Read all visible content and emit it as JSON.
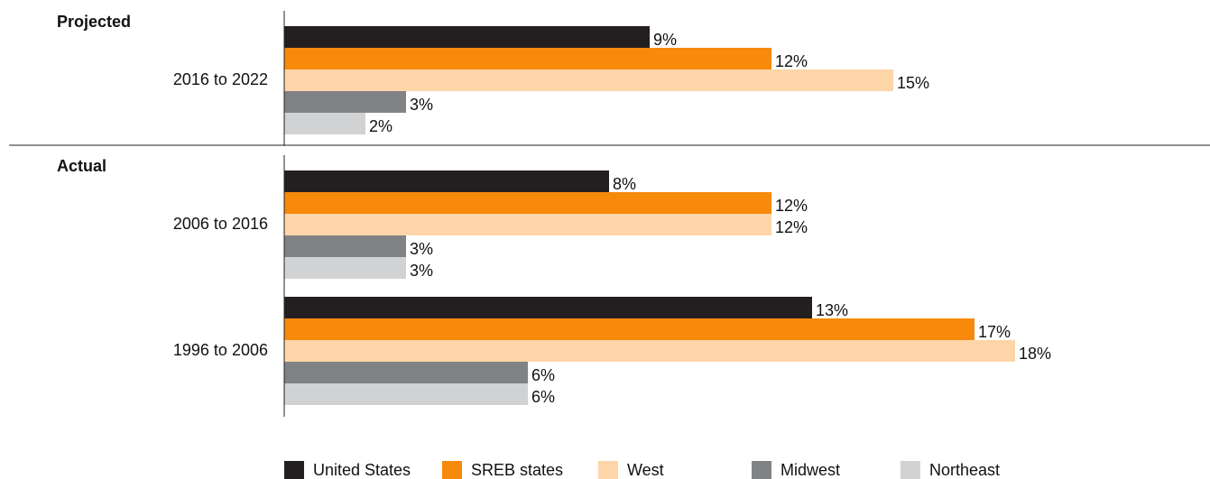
{
  "chart_data": {
    "type": "bar",
    "orientation": "horizontal",
    "groups": [
      {
        "name": "Projected",
        "categories": [
          "2016 to 2022"
        ]
      },
      {
        "name": "Actual",
        "categories": [
          "2006 to 2016",
          "1996 to 2006"
        ]
      }
    ],
    "series": [
      {
        "name": "United States",
        "color": "#231f20",
        "values": [
          9,
          8,
          13
        ],
        "value_labels": [
          "9%",
          "8%",
          "13%"
        ]
      },
      {
        "name": "SREB states",
        "color": "#f7890b",
        "values": [
          12,
          12,
          17
        ],
        "value_labels": [
          "12%",
          "12%",
          "17%"
        ]
      },
      {
        "name": "West",
        "color": "#fdd5a8",
        "values": [
          15,
          12,
          18
        ],
        "value_labels": [
          "15%",
          "12%",
          "18%"
        ]
      },
      {
        "name": "Midwest",
        "color": "#818285",
        "values": [
          3,
          3,
          6
        ],
        "value_labels": [
          "3%",
          "3%",
          "6%"
        ]
      },
      {
        "name": "Northeast",
        "color": "#d1d2d4",
        "values": [
          2,
          3,
          6
        ],
        "value_labels": [
          "2%",
          "3%",
          "6%"
        ]
      }
    ]
  }
}
